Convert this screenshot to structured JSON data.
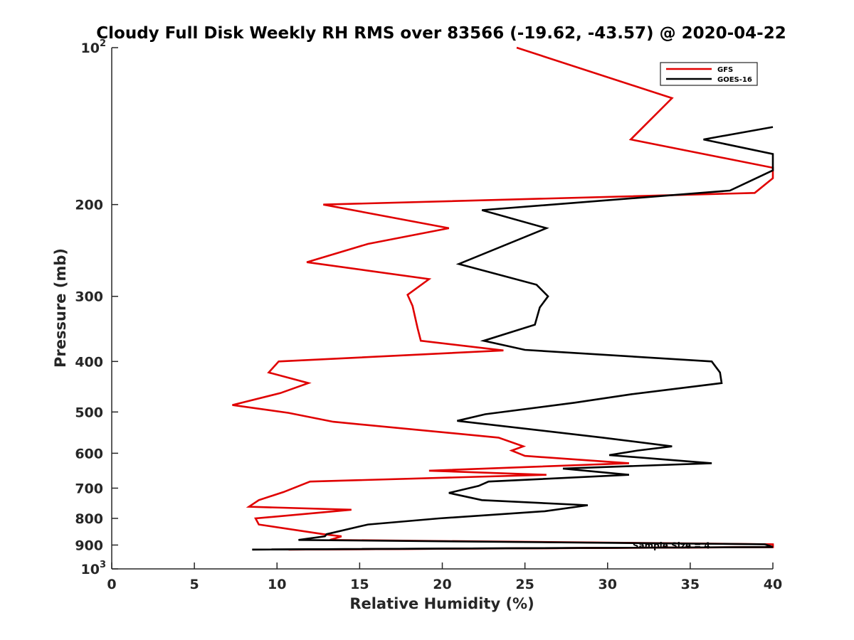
{
  "chart_data": {
    "type": "line",
    "title": "Cloudy Full Disk Weekly RH RMS over 83566 (-19.62, -43.57) @ 2020-04-22",
    "xlabel": "Relative Humidity (%)",
    "ylabel": "Pressure (mb)",
    "xlim": [
      0,
      40
    ],
    "ylim": [
      100,
      1000
    ],
    "y_scale": "log",
    "y_reversed": true,
    "grid": false,
    "legend_position": "top-right",
    "x_ticks": [
      0,
      5,
      10,
      15,
      20,
      25,
      30,
      35,
      40
    ],
    "x_tick_labels": [
      "0",
      "5",
      "10",
      "15",
      "20",
      "25",
      "30",
      "35",
      "40"
    ],
    "y_ticks": [
      {
        "value": 100,
        "base": "10",
        "exp": "2"
      },
      {
        "value": 200,
        "label": "200"
      },
      {
        "value": 300,
        "label": "300"
      },
      {
        "value": 400,
        "label": "400"
      },
      {
        "value": 500,
        "label": "500"
      },
      {
        "value": 600,
        "label": "600"
      },
      {
        "value": 700,
        "label": "700"
      },
      {
        "value": 800,
        "label": "800"
      },
      {
        "value": 900,
        "label": "900"
      },
      {
        "value": 1000,
        "base": "10",
        "exp": "3"
      }
    ],
    "series": [
      {
        "name": "GFS",
        "color": "#e00000",
        "points": [
          [
            24.5,
            100
          ],
          [
            33.9,
            125
          ],
          [
            31.4,
            150
          ],
          [
            40,
            170
          ],
          [
            40,
            178
          ],
          [
            38.9,
            190
          ],
          [
            12.8,
            200
          ],
          [
            20.4,
            222
          ],
          [
            15.5,
            238
          ],
          [
            11.8,
            258
          ],
          [
            19.2,
            278
          ],
          [
            17.9,
            298
          ],
          [
            18.2,
            313
          ],
          [
            18.5,
            345
          ],
          [
            18.7,
            365
          ],
          [
            23.7,
            381
          ],
          [
            10.1,
            400
          ],
          [
            9.5,
            420
          ],
          [
            11.9,
            440
          ],
          [
            10.2,
            460
          ],
          [
            7.3,
            485
          ],
          [
            10.7,
            502
          ],
          [
            13.4,
            522
          ],
          [
            23.4,
            560
          ],
          [
            24.9,
            582
          ],
          [
            24.2,
            593
          ],
          [
            25.0,
            607
          ],
          [
            31.3,
            627
          ],
          [
            19.2,
            648
          ],
          [
            26.3,
            660
          ],
          [
            12.0,
            680
          ],
          [
            10.4,
            712
          ],
          [
            8.9,
            738
          ],
          [
            8.3,
            760
          ],
          [
            14.5,
            770
          ],
          [
            8.7,
            800
          ],
          [
            8.9,
            822
          ],
          [
            12.8,
            858
          ],
          [
            13.9,
            866
          ],
          [
            13.2,
            880
          ],
          [
            40,
            897
          ],
          [
            40,
            908
          ],
          [
            10.7,
            918
          ]
        ]
      },
      {
        "name": "GOES-16",
        "color": "#000000",
        "points": [
          [
            40,
            142
          ],
          [
            35.8,
            150
          ],
          [
            40,
            160
          ],
          [
            40,
            172
          ],
          [
            37.4,
            188
          ],
          [
            22.4,
            205
          ],
          [
            26.3,
            222
          ],
          [
            21.0,
            260
          ],
          [
            25.7,
            285
          ],
          [
            26.4,
            300
          ],
          [
            25.9,
            315
          ],
          [
            25.6,
            340
          ],
          [
            22.5,
            365
          ],
          [
            25.0,
            380
          ],
          [
            36.3,
            400
          ],
          [
            36.8,
            420
          ],
          [
            36.9,
            440
          ],
          [
            31.5,
            462
          ],
          [
            28.0,
            480
          ],
          [
            22.6,
            505
          ],
          [
            20.9,
            520
          ],
          [
            29.7,
            560
          ],
          [
            33.9,
            582
          ],
          [
            31.8,
            593
          ],
          [
            30.1,
            605
          ],
          [
            36.3,
            627
          ],
          [
            27.3,
            642
          ],
          [
            31.3,
            660
          ],
          [
            22.8,
            680
          ],
          [
            22.2,
            693
          ],
          [
            20.4,
            715
          ],
          [
            22.4,
            738
          ],
          [
            28.8,
            755
          ],
          [
            26.2,
            775
          ],
          [
            19.8,
            800
          ],
          [
            15.5,
            822
          ],
          [
            13.0,
            858
          ],
          [
            12.9,
            866
          ],
          [
            11.3,
            880
          ],
          [
            39.5,
            897
          ],
          [
            40,
            908
          ],
          [
            8.5,
            918
          ]
        ]
      }
    ],
    "annotation": "Sample Size = 4"
  }
}
